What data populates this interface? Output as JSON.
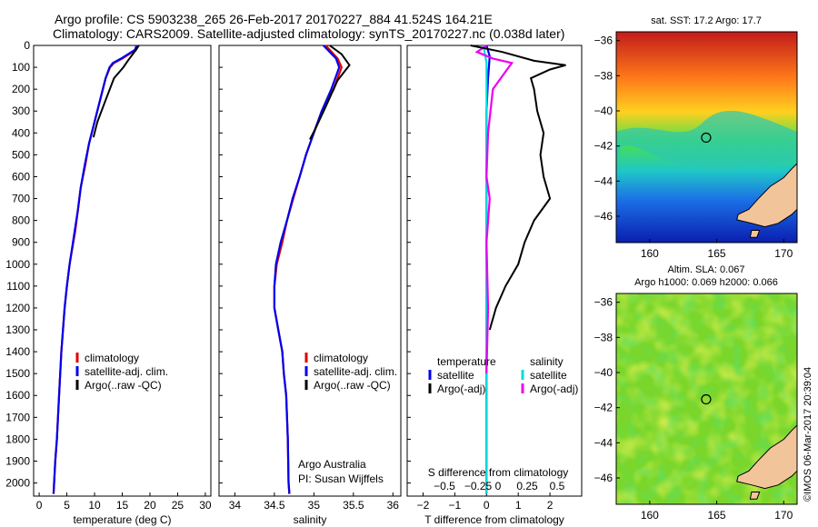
{
  "header": {
    "line1": "Argo profile: CS 5903238_265 26-Feb-2017 20170227_884 41.524S 164.21E",
    "line2": "Climatology: CARS2009. Satellite-adjusted climatology: synTS_20170227.nc (0.038d later)"
  },
  "credit": "©IMOS 06-Mar-2017 20:39:04",
  "colors": {
    "clim": "#dd0000",
    "sat": "#0000ee",
    "argo": "#000000",
    "sal_sat": "#00dddd",
    "sal_argo": "#ee00ee"
  },
  "chart_data": [
    {
      "type": "line",
      "xlabel": "temperature (deg C)",
      "ylabel": "",
      "xlim": [
        -1,
        31
      ],
      "ylim": [
        2060,
        0
      ],
      "xticks": [
        0,
        5,
        10,
        15,
        20,
        25,
        30
      ],
      "yticks": [
        0,
        100,
        200,
        300,
        400,
        500,
        600,
        700,
        800,
        900,
        1000,
        1100,
        1200,
        1300,
        1400,
        1500,
        1600,
        1700,
        1800,
        1900,
        2000
      ],
      "legend": [
        "climatology",
        "satellite-adj. clim.",
        "Argo(..raw -QC)"
      ],
      "series": [
        {
          "name": "climatology",
          "color": "#dd0000",
          "points": [
            [
              17.8,
              0
            ],
            [
              17.5,
              20
            ],
            [
              15,
              60
            ],
            [
              13.5,
              80
            ],
            [
              12.8,
              100
            ],
            [
              12.0,
              150
            ],
            [
              11.0,
              250
            ],
            [
              10.0,
              350
            ],
            [
              9.0,
              450
            ],
            [
              8.3,
              550
            ],
            [
              7.5,
              650
            ],
            [
              7.0,
              750
            ],
            [
              6.5,
              850
            ],
            [
              5.5,
              1000
            ],
            [
              5.0,
              1100
            ],
            [
              4.6,
              1200
            ],
            [
              4.0,
              1400
            ],
            [
              3.6,
              1600
            ],
            [
              3.2,
              1800
            ],
            [
              2.9,
              1900
            ],
            [
              2.6,
              2050
            ]
          ]
        },
        {
          "name": "satellite-adj. clim.",
          "color": "#0000ee",
          "points": [
            [
              17.6,
              0
            ],
            [
              17.3,
              20
            ],
            [
              14.8,
              60
            ],
            [
              13.3,
              80
            ],
            [
              12.7,
              100
            ],
            [
              12.0,
              150
            ],
            [
              11.0,
              250
            ],
            [
              10.0,
              350
            ],
            [
              9.0,
              450
            ],
            [
              8.2,
              550
            ],
            [
              7.5,
              650
            ],
            [
              7.0,
              750
            ],
            [
              6.4,
              850
            ],
            [
              5.5,
              1000
            ],
            [
              5.0,
              1100
            ],
            [
              4.6,
              1200
            ],
            [
              4.0,
              1400
            ],
            [
              3.6,
              1600
            ],
            [
              3.2,
              1800
            ],
            [
              2.9,
              1900
            ],
            [
              2.6,
              2050
            ]
          ]
        },
        {
          "name": "Argo(..raw -QC)",
          "color": "#000000",
          "points": [
            [
              18,
              0
            ],
            [
              17.5,
              20
            ],
            [
              16,
              70
            ],
            [
              15.2,
              100
            ],
            [
              13.5,
              150
            ],
            [
              12.0,
              250
            ],
            [
              10.5,
              350
            ],
            [
              9.8,
              420
            ]
          ]
        }
      ]
    },
    {
      "type": "line",
      "xlabel": "salinity",
      "ylabel": "",
      "xlim": [
        33.8,
        36.1
      ],
      "ylim": [
        2060,
        0
      ],
      "xticks": [
        34,
        34.5,
        35,
        35.5,
        36
      ],
      "legend": [
        "climatology",
        "satellite-adj. clim.",
        "Argo(..raw -QC)"
      ],
      "annotation": [
        "Argo Australia",
        "PI: Susan Wijffels"
      ],
      "series": [
        {
          "name": "climatology",
          "color": "#dd0000",
          "points": [
            [
              35.15,
              0
            ],
            [
              35.3,
              60
            ],
            [
              35.35,
              100
            ],
            [
              35.25,
              200
            ],
            [
              35.1,
              300
            ],
            [
              35.0,
              400
            ],
            [
              34.9,
              500
            ],
            [
              34.82,
              600
            ],
            [
              34.74,
              700
            ],
            [
              34.66,
              800
            ],
            [
              34.6,
              900
            ],
            [
              34.53,
              1000
            ],
            [
              34.5,
              1100
            ],
            [
              34.5,
              1200
            ],
            [
              34.55,
              1300
            ],
            [
              34.6,
              1400
            ],
            [
              34.62,
              1500
            ],
            [
              34.65,
              1600
            ],
            [
              34.67,
              1800
            ],
            [
              34.68,
              2000
            ],
            [
              34.69,
              2050
            ]
          ]
        },
        {
          "name": "satellite-adj. clim.",
          "color": "#0000ee",
          "points": [
            [
              35.12,
              0
            ],
            [
              35.28,
              60
            ],
            [
              35.32,
              100
            ],
            [
              35.22,
              200
            ],
            [
              35.1,
              300
            ],
            [
              35.0,
              400
            ],
            [
              34.9,
              500
            ],
            [
              34.82,
              600
            ],
            [
              34.73,
              700
            ],
            [
              34.66,
              800
            ],
            [
              34.58,
              900
            ],
            [
              34.52,
              1000
            ],
            [
              34.5,
              1100
            ],
            [
              34.5,
              1200
            ],
            [
              34.55,
              1300
            ],
            [
              34.6,
              1400
            ],
            [
              34.62,
              1500
            ],
            [
              34.65,
              1600
            ],
            [
              34.67,
              1800
            ],
            [
              34.68,
              2000
            ],
            [
              34.69,
              2050
            ]
          ]
        },
        {
          "name": "Argo(..raw -QC)",
          "color": "#000000",
          "points": [
            [
              35.2,
              0
            ],
            [
              35.35,
              40
            ],
            [
              35.45,
              90
            ],
            [
              35.3,
              160
            ],
            [
              35.15,
              280
            ],
            [
              35.02,
              380
            ],
            [
              34.95,
              430
            ]
          ]
        }
      ]
    },
    {
      "type": "line",
      "xlabel": "T difference from climatology",
      "toplabel": "S difference from climatology",
      "xlim": [
        -2.5,
        3
      ],
      "ylim": [
        2060,
        0
      ],
      "xticks": [
        -2,
        -1,
        0,
        1,
        2
      ],
      "xticks_top": [
        "-0.5",
        "-0.25",
        "0",
        "0.25",
        "0.5"
      ],
      "legend_left_title": "temperature",
      "legend_left": [
        "satellite",
        "Argo(-adj)"
      ],
      "legend_right_title": "salinity",
      "legend_right": [
        "satellite",
        "Argo(-adj)"
      ],
      "series": [
        {
          "name": "",
          "color": "#0000ee",
          "points": [
            [
              0,
              0
            ],
            [
              0.1,
              50
            ],
            [
              0.05,
              150
            ],
            [
              0,
              300
            ],
            [
              0,
              600
            ],
            [
              0,
              1000
            ],
            [
              0,
              1400
            ],
            [
              0,
              1800
            ],
            [
              0,
              2050
            ]
          ]
        },
        {
          "name": "",
          "color": "#00dddd",
          "points": [
            [
              -0.1,
              0
            ],
            [
              0,
              80
            ],
            [
              0,
              300
            ],
            [
              0,
              700
            ],
            [
              0,
              1200
            ],
            [
              0,
              1600
            ],
            [
              0,
              2050
            ]
          ]
        },
        {
          "name": "",
          "color": "#ee00ee",
          "points": [
            [
              0,
              0
            ],
            [
              -0.3,
              30
            ],
            [
              0.2,
              60
            ],
            [
              0.8,
              80
            ],
            [
              0.6,
              120
            ],
            [
              0.2,
              200
            ],
            [
              0.05,
              400
            ],
            [
              0,
              600
            ],
            [
              0.1,
              700
            ],
            [
              0,
              900
            ],
            [
              0.05,
              1200
            ],
            [
              0,
              1500
            ]
          ]
        },
        {
          "name": "",
          "color": "#000000",
          "points": [
            [
              -0.5,
              0
            ],
            [
              0.5,
              30
            ],
            [
              1.5,
              70
            ],
            [
              2.5,
              90
            ],
            [
              2.0,
              110
            ],
            [
              1.4,
              150
            ],
            [
              1.5,
              200
            ],
            [
              1.6,
              300
            ],
            [
              1.8,
              400
            ],
            [
              1.7,
              500
            ],
            [
              1.8,
              600
            ],
            [
              2.0,
              700
            ],
            [
              1.5,
              800
            ],
            [
              1.2,
              900
            ],
            [
              1.0,
              1000
            ],
            [
              0.6,
              1100
            ],
            [
              0.3,
              1200
            ],
            [
              0.1,
              1300
            ]
          ]
        }
      ]
    },
    {
      "type": "heatmap",
      "title": "sat. SST: 17.2  Argo: 17.7",
      "xlim": [
        157.5,
        171
      ],
      "ylim": [
        -47.5,
        -35.5
      ],
      "xticks": [
        160,
        165,
        170
      ],
      "yticks": [
        -36,
        -38,
        -40,
        -42,
        -44,
        -46
      ],
      "marker": [
        164.21,
        -41.524
      ]
    },
    {
      "type": "heatmap",
      "title": "Altim. SLA: 0.067",
      "subtitle": "Argo h1000: 0.069 h2000: 0.066",
      "xlim": [
        157.5,
        171
      ],
      "ylim": [
        -47.5,
        -35.5
      ],
      "xticks": [
        160,
        165,
        170
      ],
      "yticks": [
        -36,
        -38,
        -40,
        -42,
        -44,
        -46
      ],
      "marker": [
        164.21,
        -41.524
      ]
    }
  ]
}
